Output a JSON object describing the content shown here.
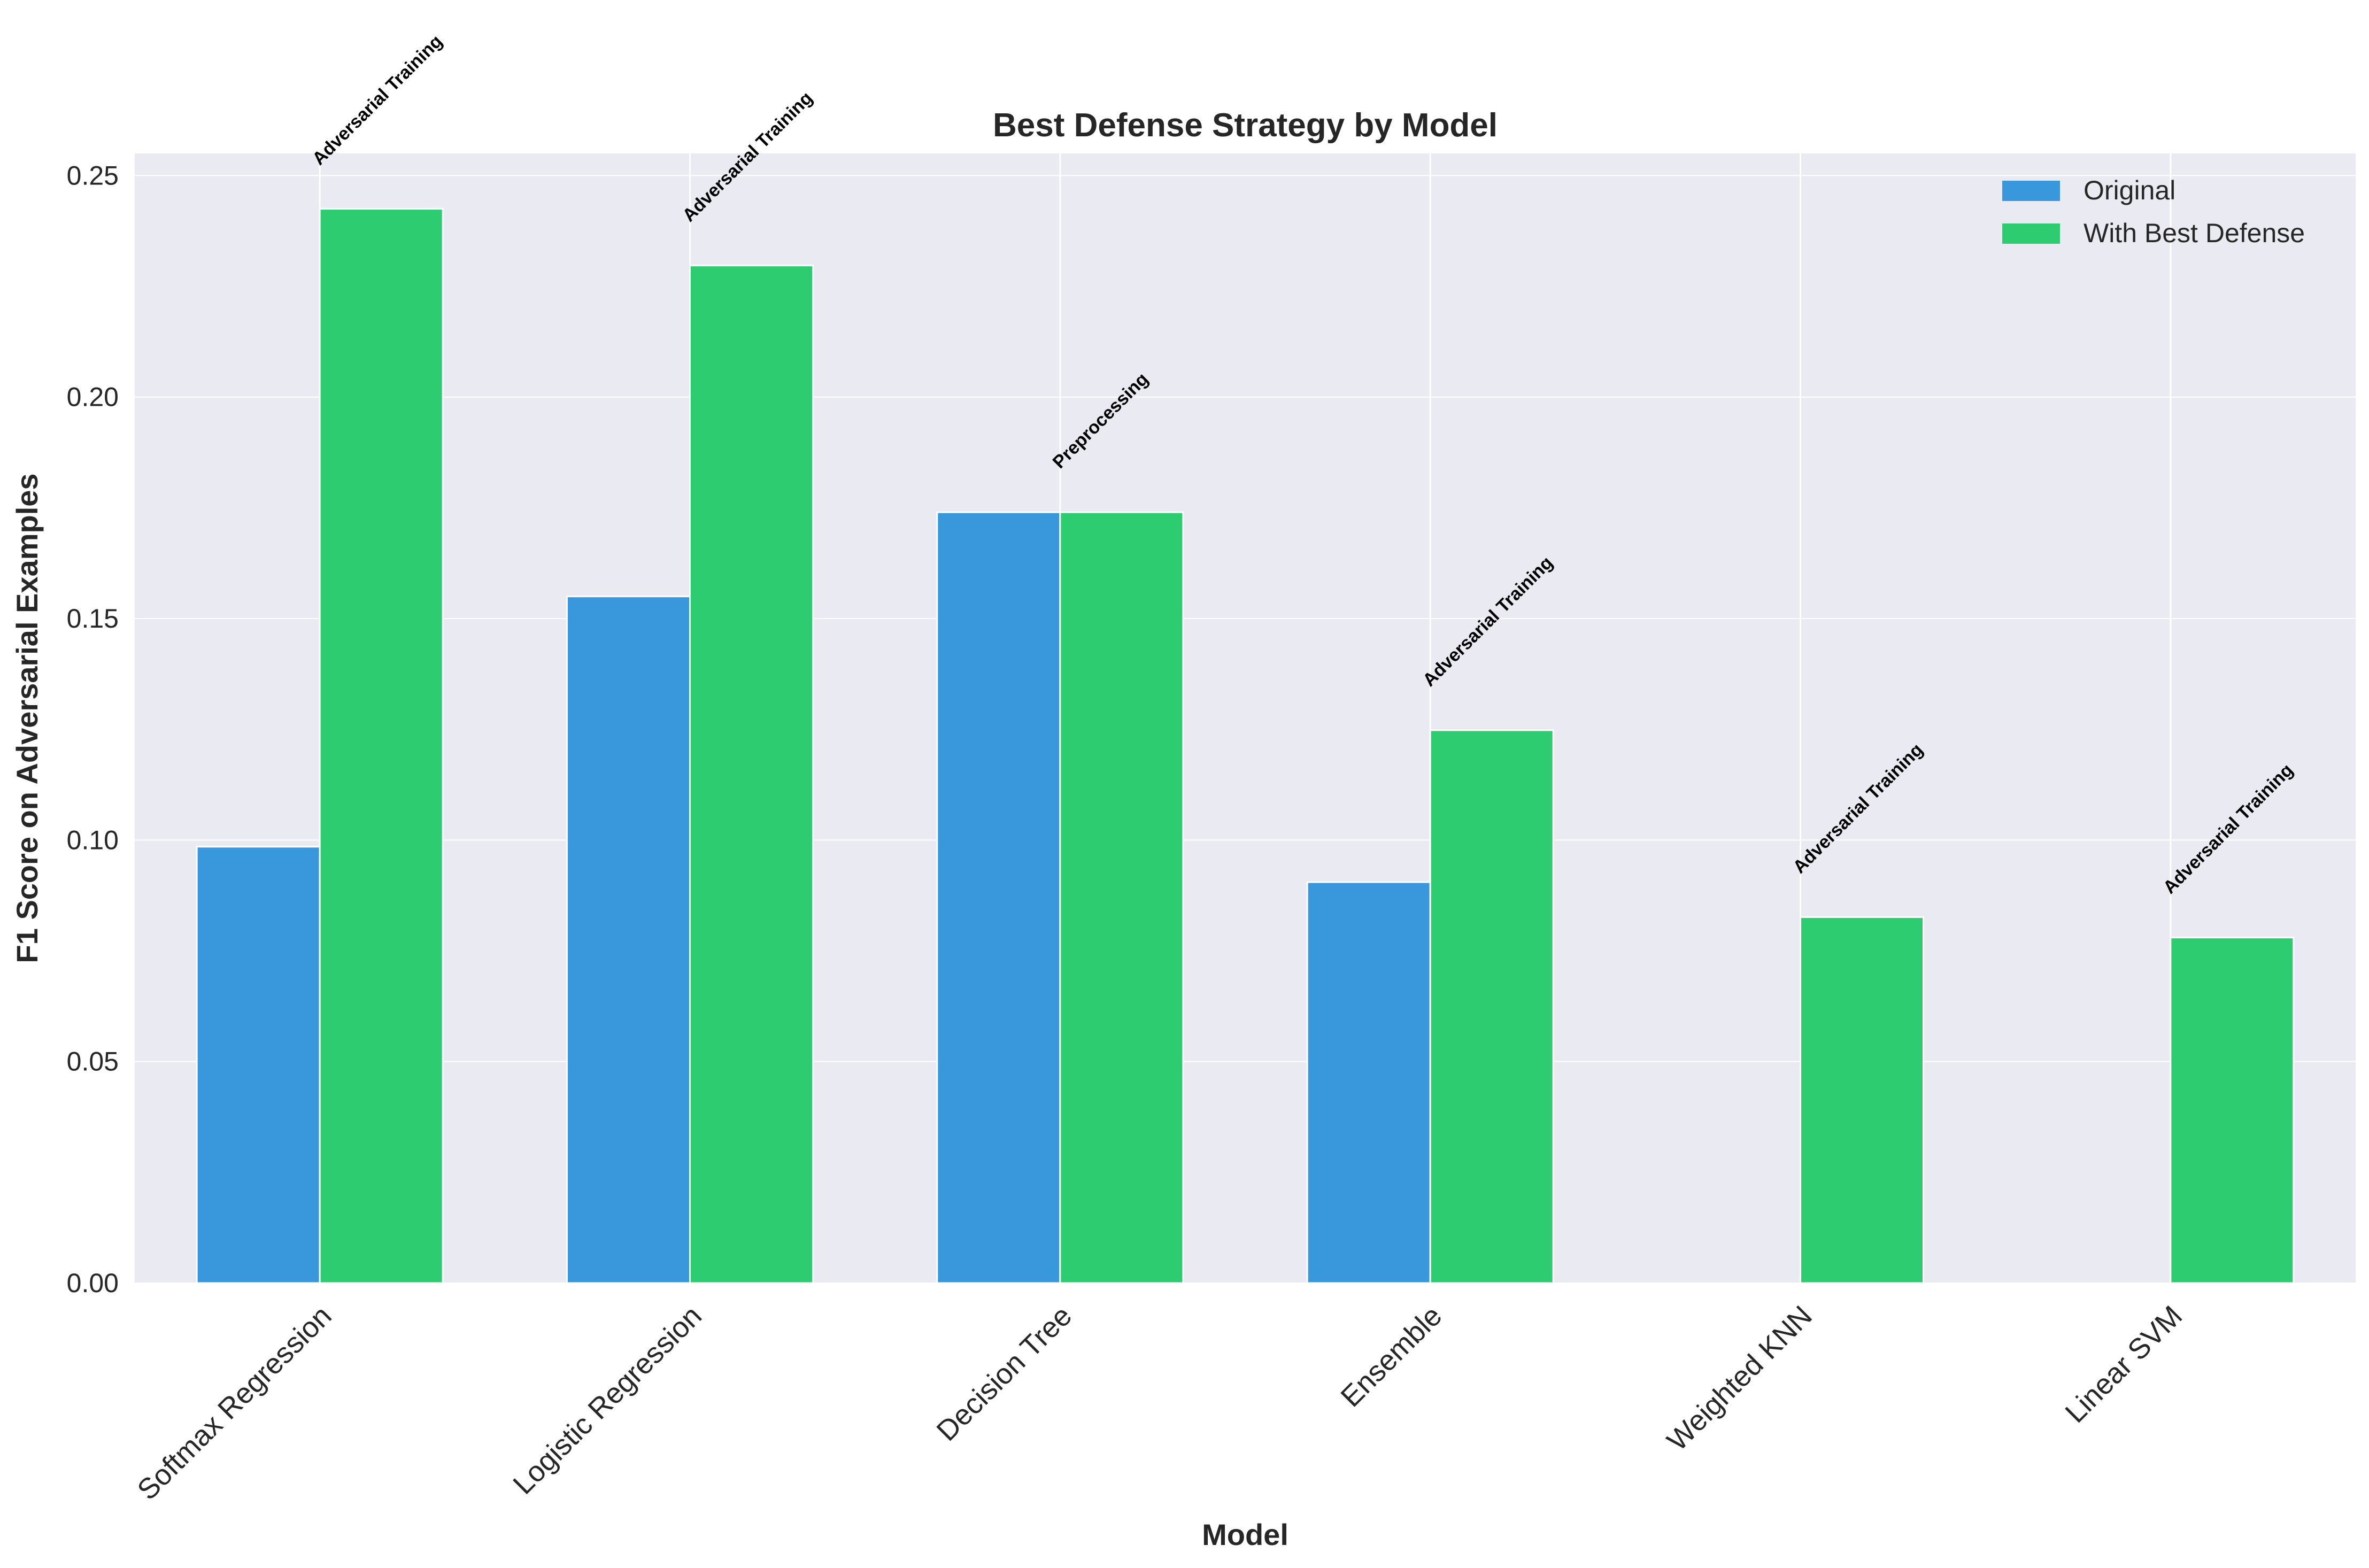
{
  "chart_data": {
    "type": "bar",
    "title": "Best Defense Strategy by Model",
    "xlabel": "Model",
    "ylabel": "F1 Score on Adversarial Examples",
    "categories": [
      "Softmax Regression",
      "Logistic Regression",
      "Decision Tree",
      "Ensemble",
      "Weighted KNN",
      "Linear SVM"
    ],
    "series": [
      {
        "name": "Original",
        "color": "#3898db",
        "values": [
          0.0985,
          0.155,
          0.174,
          0.0905,
          0.0,
          0.0
        ]
      },
      {
        "name": "With Best Defense",
        "color": "#2ecc71",
        "values": [
          0.2425,
          0.2297,
          0.174,
          0.1248,
          0.0826,
          0.078
        ]
      }
    ],
    "annotations": [
      "Adversarial Training",
      "Adversarial Training",
      "Preprocessing",
      "Adversarial Training",
      "Adversarial Training",
      "Adversarial Training"
    ],
    "ylim": [
      0,
      0.255
    ],
    "yticks": [
      0.0,
      0.05,
      0.1,
      0.15,
      0.2,
      0.25
    ],
    "ytick_labels": [
      "0.00",
      "0.05",
      "0.10",
      "0.15",
      "0.20",
      "0.25"
    ],
    "grid": true,
    "legend_position": "top-right",
    "plot_background": "#eaeaf2"
  }
}
